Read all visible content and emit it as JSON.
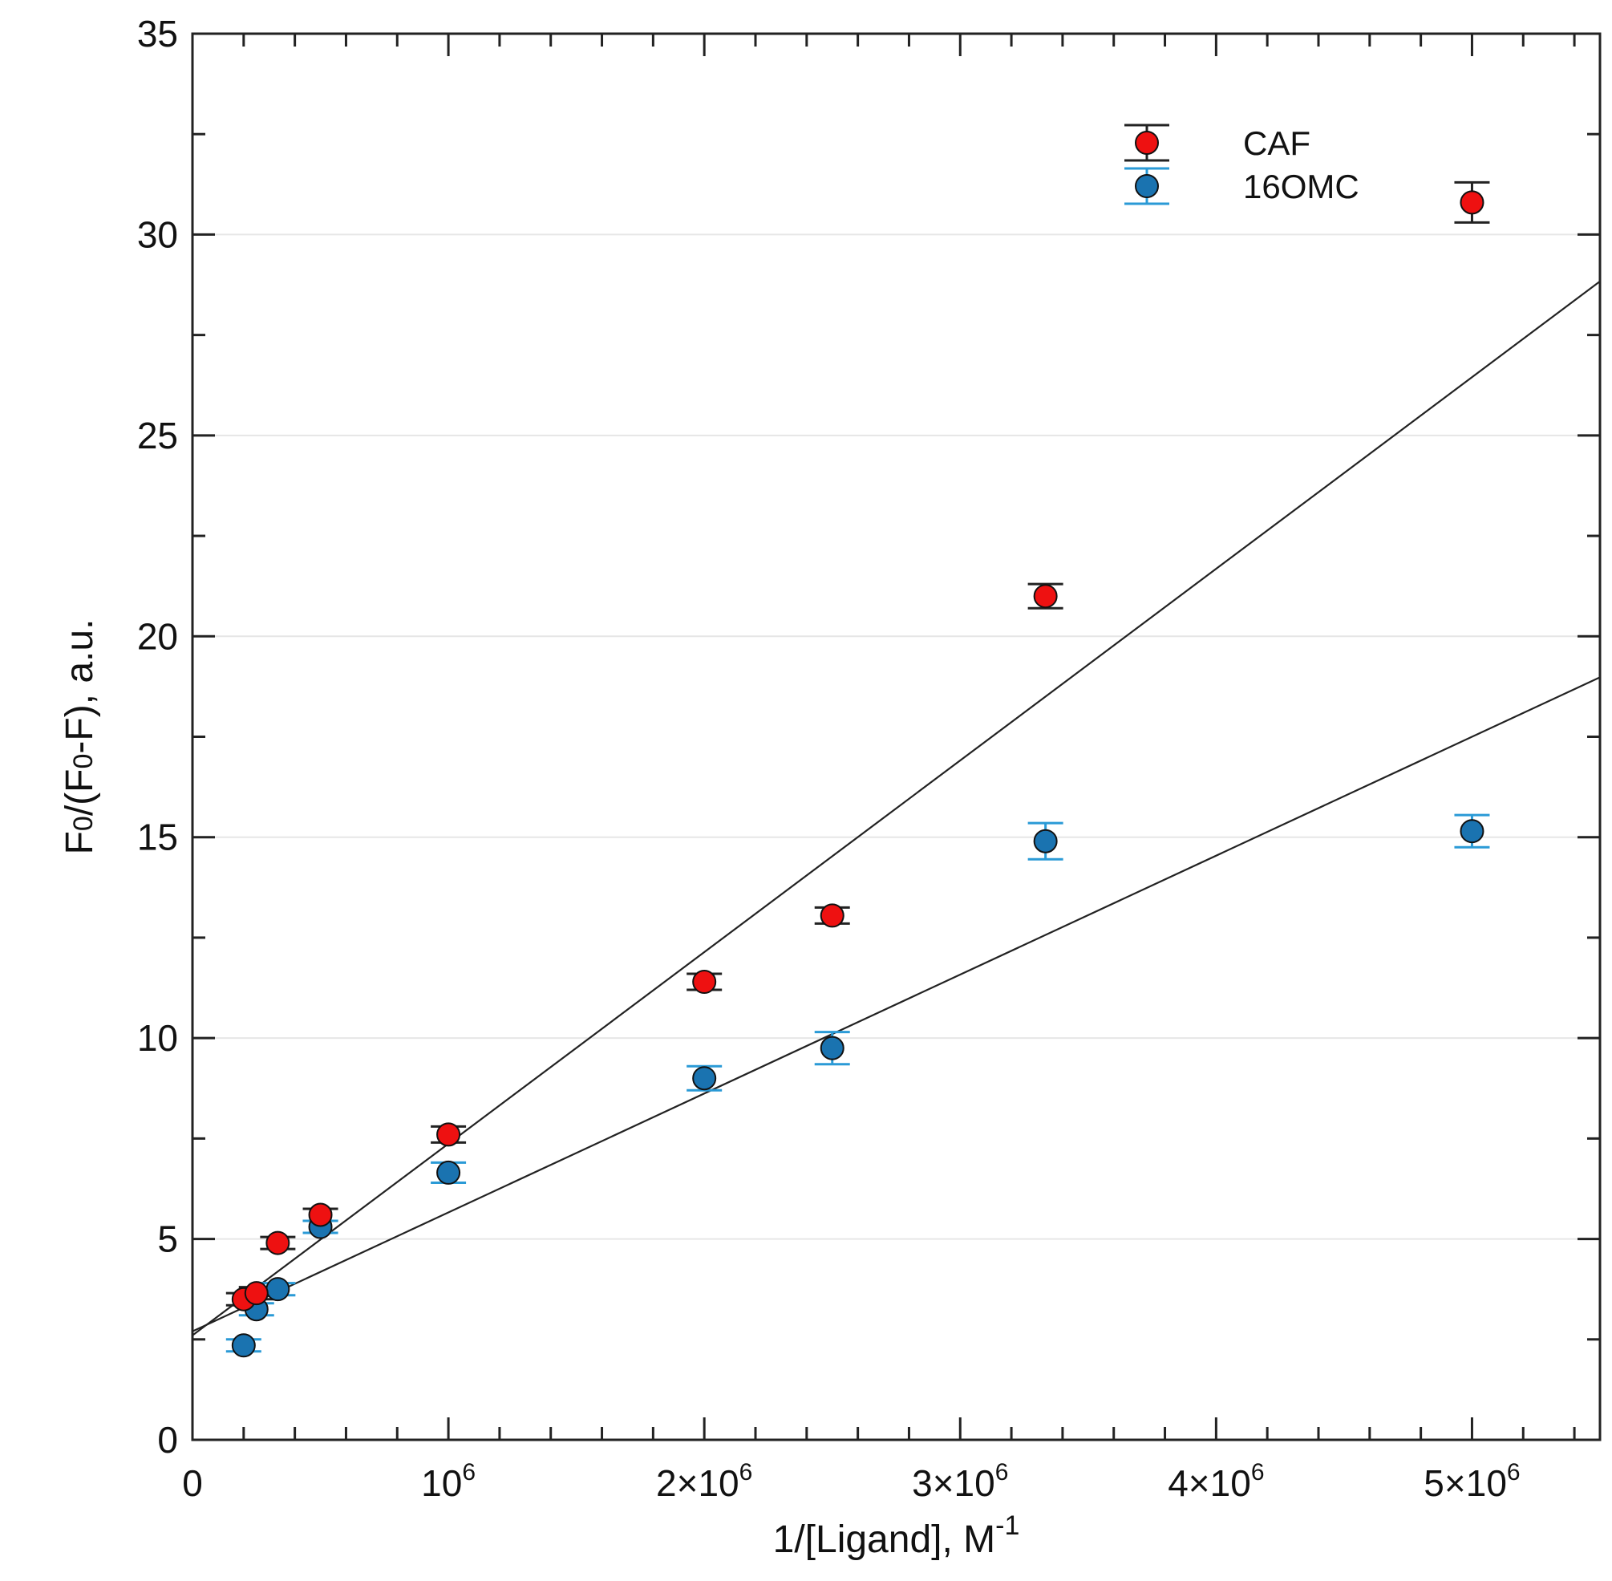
{
  "chart_data": {
    "type": "scatter",
    "title": "",
    "xlabel": "1/[Ligand], M",
    "xlabel_superscript": "-1",
    "ylabel_parts": [
      "F",
      "0",
      "/(F",
      "0",
      "-F), a.u."
    ],
    "xlim": [
      0,
      5500000
    ],
    "ylim": [
      0,
      35
    ],
    "x_ticks": [
      {
        "value": 0,
        "base": "0",
        "exp": ""
      },
      {
        "value": 1000000,
        "base": "10",
        "exp": "6"
      },
      {
        "value": 2000000,
        "base": "2×10",
        "exp": "6"
      },
      {
        "value": 3000000,
        "base": "3×10",
        "exp": "6"
      },
      {
        "value": 4000000,
        "base": "4×10",
        "exp": "6"
      },
      {
        "value": 5000000,
        "base": "5×10",
        "exp": "6"
      }
    ],
    "y_ticks": [
      {
        "value": 0,
        "label": "0"
      },
      {
        "value": 5,
        "label": "5"
      },
      {
        "value": 10,
        "label": "10"
      },
      {
        "value": 15,
        "label": "15"
      },
      {
        "value": 20,
        "label": "20"
      },
      {
        "value": 25,
        "label": "25"
      },
      {
        "value": 30,
        "label": "30"
      },
      {
        "value": 35,
        "label": "35"
      }
    ],
    "legend_position": "top-right",
    "series": [
      {
        "name": "CAF",
        "color": "#ee1111",
        "errorbar_color": "#222222",
        "x": [
          200000,
          250000,
          333333,
          500000,
          1000000,
          2000000,
          2500000,
          3333333,
          5000000
        ],
        "y": [
          3.5,
          3.65,
          4.9,
          5.6,
          7.6,
          11.4,
          13.05,
          21.0,
          30.8
        ],
        "yerr": [
          0.15,
          0.15,
          0.15,
          0.15,
          0.2,
          0.2,
          0.2,
          0.3,
          0.5
        ],
        "fit": {
          "intercept": 2.6,
          "slope": 4.77e-06
        }
      },
      {
        "name": "16OMC",
        "color": "#1a73b0",
        "errorbar_color": "#2a9ad6",
        "x": [
          200000,
          250000,
          333333,
          500000,
          1000000,
          2000000,
          2500000,
          3333333,
          5000000
        ],
        "y": [
          2.35,
          3.25,
          3.75,
          5.3,
          6.65,
          9.0,
          9.75,
          14.9,
          15.15
        ],
        "yerr": [
          0.15,
          0.15,
          0.15,
          0.15,
          0.25,
          0.3,
          0.4,
          0.45,
          0.4
        ],
        "fit": {
          "intercept": 2.7,
          "slope": 2.96e-06
        }
      }
    ]
  }
}
